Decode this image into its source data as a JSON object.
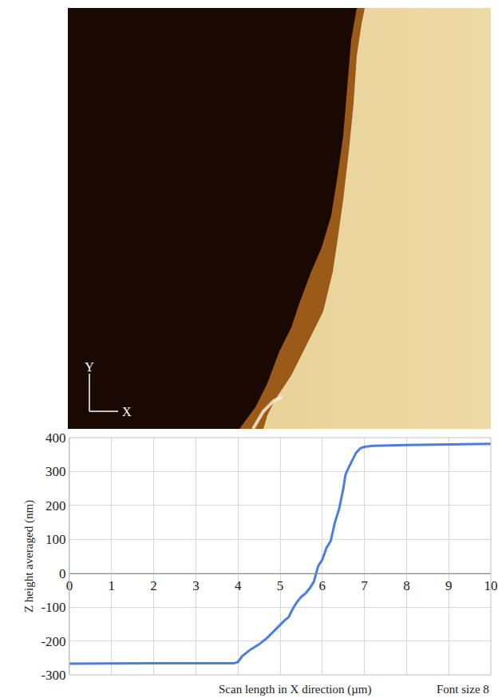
{
  "chart_data": {
    "type": "line",
    "x_label": "Scan length in X direction (µm)",
    "y_label": "Z height averaged (nm)",
    "annotations": [
      "Font size 8"
    ],
    "xlim": [
      0,
      10
    ],
    "ylim": [
      -300,
      400
    ],
    "xticks": [
      0,
      1,
      2,
      3,
      4,
      5,
      6,
      7,
      8,
      9,
      10
    ],
    "yticks": [
      -300,
      -200,
      -100,
      0,
      100,
      200,
      300,
      400
    ],
    "grid": true,
    "x": [
      0,
      1,
      2,
      3,
      3.9,
      4.0,
      4.1,
      4.3,
      4.5,
      4.7,
      4.9,
      5.1,
      5.2,
      5.3,
      5.4,
      5.5,
      5.6,
      5.7,
      5.8,
      5.85,
      5.9,
      6.0,
      6.1,
      6.2,
      6.3,
      6.4,
      6.5,
      6.55,
      6.6,
      6.7,
      6.8,
      6.9,
      7.0,
      7.2,
      7.5,
      8,
      9,
      10
    ],
    "series": [
      {
        "color": "#4a7fe0",
        "values": [
          -267,
          -266,
          -266,
          -266,
          -266,
          -262,
          -245,
          -225,
          -210,
          -190,
          -165,
          -140,
          -130,
          -105,
          -85,
          -70,
          -60,
          -45,
          -25,
          0,
          20,
          40,
          75,
          95,
          150,
          190,
          250,
          290,
          305,
          330,
          355,
          368,
          373,
          376,
          377,
          378,
          380,
          382
        ]
      }
    ]
  },
  "afm_image": {
    "axis_labels": {
      "y": "Y",
      "x": "X"
    }
  }
}
